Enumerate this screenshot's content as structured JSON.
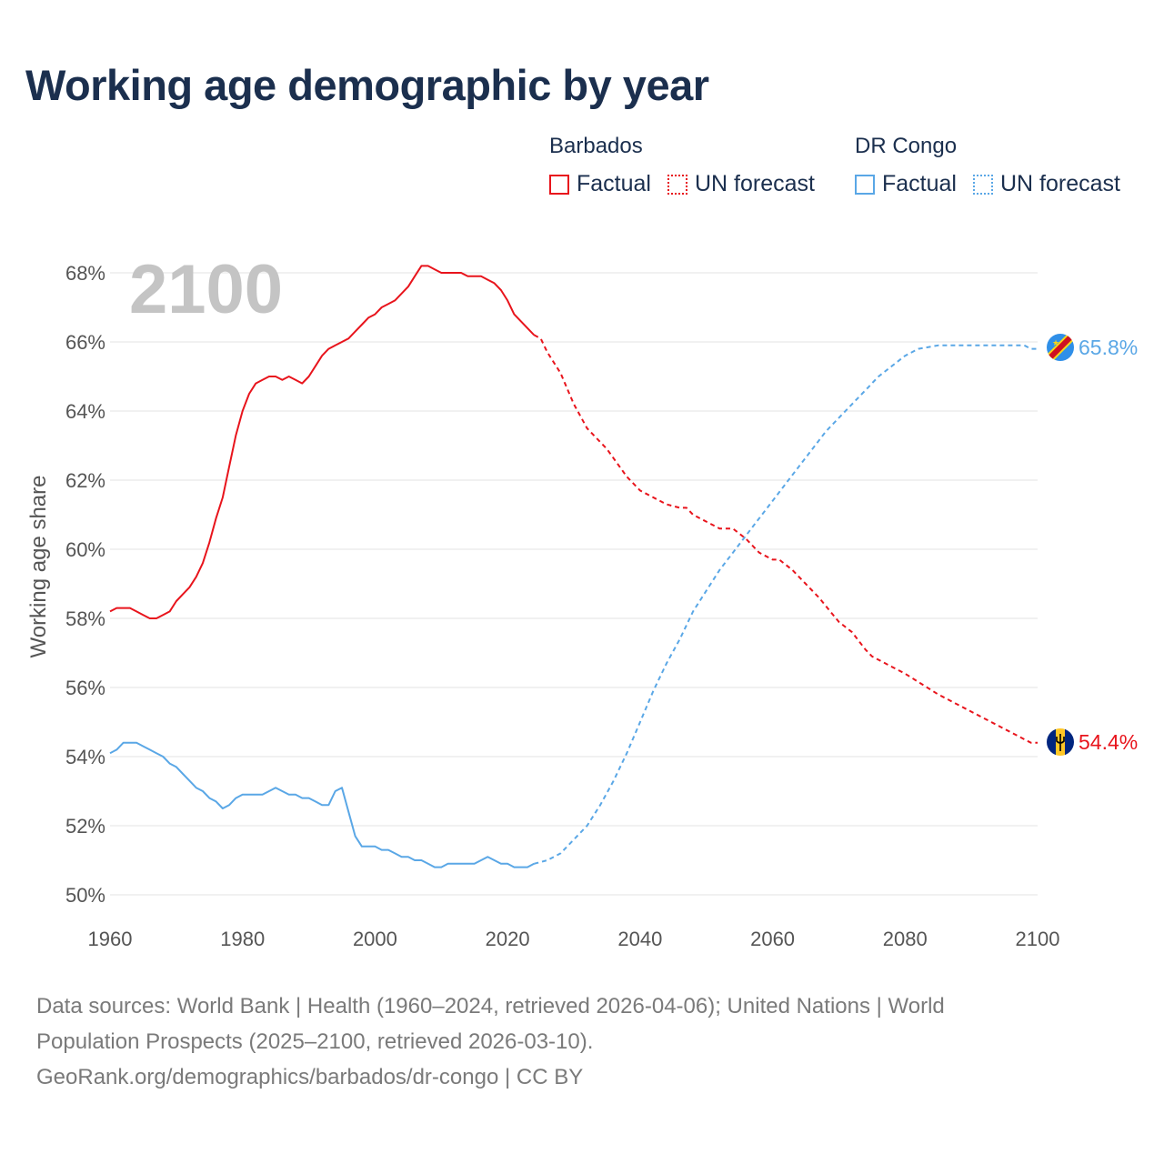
{
  "title": "Working age demographic by year",
  "legend": {
    "groups": [
      {
        "name": "Barbados",
        "factual_label": "Factual",
        "forecast_label": "UN forecast",
        "color": "#e8141c"
      },
      {
        "name": "DR Congo",
        "factual_label": "Factual",
        "forecast_label": "UN forecast",
        "color": "#5aa7e6"
      }
    ]
  },
  "footer": {
    "line1": "Data sources: World Bank | Health (1960–2024, retrieved 2026-04-06); United Nations | World",
    "line2": "Population Prospects (2025–2100, retrieved 2026-03-10).",
    "line3": "GeoRank.org/demographics/barbados/dr-congo | CC BY"
  },
  "chart_data": {
    "type": "line",
    "title": "Working age demographic by year",
    "xlabel": "",
    "ylabel": "Working age share",
    "xlim": [
      1960,
      2100
    ],
    "ylim": [
      50,
      68
    ],
    "xticks": [
      "1960",
      "1980",
      "2000",
      "2020",
      "2040",
      "2060",
      "2080",
      "2100"
    ],
    "yticks": [
      "50%",
      "52%",
      "54%",
      "56%",
      "58%",
      "60%",
      "62%",
      "64%",
      "66%",
      "68%"
    ],
    "year_display": "2100",
    "grid": true,
    "series": [
      {
        "name": "Barbados",
        "color": "#e8141c",
        "end_label": "54.4%",
        "factual": [
          [
            1960,
            58.2
          ],
          [
            1961,
            58.3
          ],
          [
            1962,
            58.3
          ],
          [
            1963,
            58.3
          ],
          [
            1964,
            58.2
          ],
          [
            1965,
            58.1
          ],
          [
            1966,
            58.0
          ],
          [
            1967,
            58.0
          ],
          [
            1968,
            58.1
          ],
          [
            1969,
            58.2
          ],
          [
            1970,
            58.5
          ],
          [
            1971,
            58.7
          ],
          [
            1972,
            58.9
          ],
          [
            1973,
            59.2
          ],
          [
            1974,
            59.6
          ],
          [
            1975,
            60.2
          ],
          [
            1976,
            60.9
          ],
          [
            1977,
            61.5
          ],
          [
            1978,
            62.4
          ],
          [
            1979,
            63.3
          ],
          [
            1980,
            64.0
          ],
          [
            1981,
            64.5
          ],
          [
            1982,
            64.8
          ],
          [
            1983,
            64.9
          ],
          [
            1984,
            65.0
          ],
          [
            1985,
            65.0
          ],
          [
            1986,
            64.9
          ],
          [
            1987,
            65.0
          ],
          [
            1988,
            64.9
          ],
          [
            1989,
            64.8
          ],
          [
            1990,
            65.0
          ],
          [
            1991,
            65.3
          ],
          [
            1992,
            65.6
          ],
          [
            1993,
            65.8
          ],
          [
            1994,
            65.9
          ],
          [
            1995,
            66.0
          ],
          [
            1996,
            66.1
          ],
          [
            1997,
            66.3
          ],
          [
            1998,
            66.5
          ],
          [
            1999,
            66.7
          ],
          [
            2000,
            66.8
          ],
          [
            2001,
            67.0
          ],
          [
            2002,
            67.1
          ],
          [
            2003,
            67.2
          ],
          [
            2004,
            67.4
          ],
          [
            2005,
            67.6
          ],
          [
            2006,
            67.9
          ],
          [
            2007,
            68.2
          ],
          [
            2008,
            68.2
          ],
          [
            2009,
            68.1
          ],
          [
            2010,
            68.0
          ],
          [
            2011,
            68.0
          ],
          [
            2012,
            68.0
          ],
          [
            2013,
            68.0
          ],
          [
            2014,
            67.9
          ],
          [
            2015,
            67.9
          ],
          [
            2016,
            67.9
          ],
          [
            2017,
            67.8
          ],
          [
            2018,
            67.7
          ],
          [
            2019,
            67.5
          ],
          [
            2020,
            67.2
          ],
          [
            2021,
            66.8
          ],
          [
            2022,
            66.6
          ],
          [
            2023,
            66.4
          ],
          [
            2024,
            66.2
          ]
        ],
        "forecast": [
          [
            2024,
            66.2
          ],
          [
            2025,
            66.1
          ],
          [
            2026,
            65.7
          ],
          [
            2028,
            65.1
          ],
          [
            2030,
            64.2
          ],
          [
            2032,
            63.5
          ],
          [
            2035,
            62.9
          ],
          [
            2038,
            62.1
          ],
          [
            2040,
            61.7
          ],
          [
            2042,
            61.5
          ],
          [
            2044,
            61.3
          ],
          [
            2046,
            61.2
          ],
          [
            2047,
            61.2
          ],
          [
            2048,
            61.0
          ],
          [
            2050,
            60.8
          ],
          [
            2052,
            60.6
          ],
          [
            2054,
            60.6
          ],
          [
            2056,
            60.3
          ],
          [
            2058,
            59.9
          ],
          [
            2060,
            59.7
          ],
          [
            2061,
            59.7
          ],
          [
            2063,
            59.4
          ],
          [
            2065,
            59.0
          ],
          [
            2067,
            58.6
          ],
          [
            2070,
            57.9
          ],
          [
            2072,
            57.6
          ],
          [
            2074,
            57.1
          ],
          [
            2075,
            56.9
          ],
          [
            2078,
            56.6
          ],
          [
            2080,
            56.4
          ],
          [
            2085,
            55.8
          ],
          [
            2090,
            55.3
          ],
          [
            2095,
            54.8
          ],
          [
            2099,
            54.4
          ],
          [
            2100,
            54.4
          ]
        ]
      },
      {
        "name": "DR Congo",
        "color": "#5aa7e6",
        "end_label": "65.8%",
        "factual": [
          [
            1960,
            54.1
          ],
          [
            1961,
            54.2
          ],
          [
            1962,
            54.4
          ],
          [
            1963,
            54.4
          ],
          [
            1964,
            54.4
          ],
          [
            1965,
            54.3
          ],
          [
            1966,
            54.2
          ],
          [
            1967,
            54.1
          ],
          [
            1968,
            54.0
          ],
          [
            1969,
            53.8
          ],
          [
            1970,
            53.7
          ],
          [
            1971,
            53.5
          ],
          [
            1972,
            53.3
          ],
          [
            1973,
            53.1
          ],
          [
            1974,
            53.0
          ],
          [
            1975,
            52.8
          ],
          [
            1976,
            52.7
          ],
          [
            1977,
            52.5
          ],
          [
            1978,
            52.6
          ],
          [
            1979,
            52.8
          ],
          [
            1980,
            52.9
          ],
          [
            1981,
            52.9
          ],
          [
            1982,
            52.9
          ],
          [
            1983,
            52.9
          ],
          [
            1984,
            53.0
          ],
          [
            1985,
            53.1
          ],
          [
            1986,
            53.0
          ],
          [
            1987,
            52.9
          ],
          [
            1988,
            52.9
          ],
          [
            1989,
            52.8
          ],
          [
            1990,
            52.8
          ],
          [
            1991,
            52.7
          ],
          [
            1992,
            52.6
          ],
          [
            1993,
            52.6
          ],
          [
            1994,
            53.0
          ],
          [
            1995,
            53.1
          ],
          [
            1996,
            52.4
          ],
          [
            1997,
            51.7
          ],
          [
            1998,
            51.4
          ],
          [
            1999,
            51.4
          ],
          [
            2000,
            51.4
          ],
          [
            2001,
            51.3
          ],
          [
            2002,
            51.3
          ],
          [
            2003,
            51.2
          ],
          [
            2004,
            51.1
          ],
          [
            2005,
            51.1
          ],
          [
            2006,
            51.0
          ],
          [
            2007,
            51.0
          ],
          [
            2008,
            50.9
          ],
          [
            2009,
            50.8
          ],
          [
            2010,
            50.8
          ],
          [
            2011,
            50.9
          ],
          [
            2012,
            50.9
          ],
          [
            2013,
            50.9
          ],
          [
            2014,
            50.9
          ],
          [
            2015,
            50.9
          ],
          [
            2016,
            51.0
          ],
          [
            2017,
            51.1
          ],
          [
            2018,
            51.0
          ],
          [
            2019,
            50.9
          ],
          [
            2020,
            50.9
          ],
          [
            2021,
            50.8
          ],
          [
            2022,
            50.8
          ],
          [
            2023,
            50.8
          ],
          [
            2024,
            50.9
          ]
        ],
        "forecast": [
          [
            2024,
            50.9
          ],
          [
            2026,
            51.0
          ],
          [
            2028,
            51.2
          ],
          [
            2030,
            51.6
          ],
          [
            2032,
            52.0
          ],
          [
            2034,
            52.6
          ],
          [
            2036,
            53.3
          ],
          [
            2038,
            54.1
          ],
          [
            2040,
            55.0
          ],
          [
            2042,
            55.9
          ],
          [
            2044,
            56.7
          ],
          [
            2046,
            57.4
          ],
          [
            2048,
            58.2
          ],
          [
            2050,
            58.8
          ],
          [
            2052,
            59.4
          ],
          [
            2054,
            59.9
          ],
          [
            2056,
            60.4
          ],
          [
            2058,
            60.9
          ],
          [
            2060,
            61.4
          ],
          [
            2062,
            61.9
          ],
          [
            2064,
            62.4
          ],
          [
            2066,
            62.9
          ],
          [
            2068,
            63.4
          ],
          [
            2070,
            63.8
          ],
          [
            2072,
            64.2
          ],
          [
            2074,
            64.6
          ],
          [
            2076,
            65.0
          ],
          [
            2078,
            65.3
          ],
          [
            2080,
            65.6
          ],
          [
            2082,
            65.8
          ],
          [
            2085,
            65.9
          ],
          [
            2090,
            65.9
          ],
          [
            2095,
            65.9
          ],
          [
            2098,
            65.9
          ],
          [
            2099,
            65.8
          ],
          [
            2100,
            65.8
          ]
        ]
      }
    ]
  }
}
